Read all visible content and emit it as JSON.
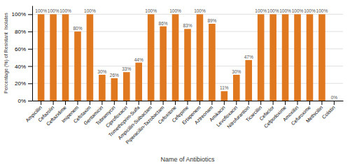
{
  "chart_data": {
    "type": "bar",
    "categories": [
      "Ampicillin",
      "Cefazolin",
      "Ceftazidime",
      "Imipenem",
      "Cefotaxim",
      "Gentamicin",
      "Tobramycin",
      "Ciprofloxacin",
      "Trimethoprim-Sulfa",
      "Ampicillin-Sulbactam",
      "Piperacillin-Tazobactam",
      "Cefoxitone",
      "Cefepime",
      "Ertapenem",
      "Aztreonam",
      "Amikacin",
      "Levofloxacin",
      "Nitrofurantoin",
      "Ticarcillin",
      "Cefaclor",
      "Cefpodoxime",
      "Amoxillin",
      "Cefuroxime",
      "Methicillin",
      "Colistin"
    ],
    "values": [
      100,
      100,
      100,
      80,
      100,
      30,
      26,
      33,
      44,
      100,
      86,
      100,
      83,
      100,
      89,
      11,
      30,
      47,
      100,
      100,
      100,
      100,
      100,
      100,
      0
    ],
    "value_labels": [
      "100%",
      "100%",
      "100%",
      "80%",
      "100%",
      "30%",
      "26%",
      "33%",
      "44%",
      "100%",
      "86%",
      "100%",
      "83%",
      "100%",
      "89%",
      "11%",
      "30%",
      "47%",
      "100%",
      "100%",
      "100%",
      "100%",
      "100%",
      "100%",
      "0%"
    ],
    "data_labels": true,
    "color": "#E07820",
    "xlabel": "Name of Antibiotics",
    "ylabel": "Percentage (%) of Resistant  Isolates",
    "ylim": [
      0,
      110
    ],
    "yticks": [
      {
        "value": 0,
        "label": "0%"
      },
      {
        "value": 20,
        "label": "20%"
      },
      {
        "value": 40,
        "label": "40%"
      },
      {
        "value": 60,
        "label": "60%"
      },
      {
        "value": 80,
        "label": "80%"
      },
      {
        "value": 100,
        "label": "100%"
      }
    ],
    "grid": true
  }
}
